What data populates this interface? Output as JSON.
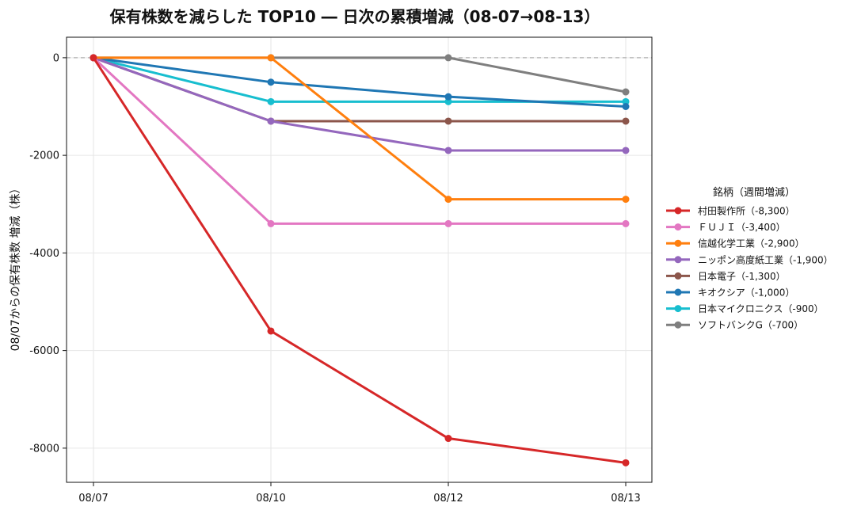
{
  "chart_data": {
    "type": "line",
    "title": "保有株数を減らした TOP10 ― 日次の累積増減（08-07→08-13）",
    "xlabel": "",
    "ylabel": "08/07からの保有株数 増減（株）",
    "x": [
      "08/07",
      "08/10",
      "08/12",
      "08/13"
    ],
    "yticks": [
      0,
      -2000,
      -4000,
      -6000,
      -8000
    ],
    "yticklabels": [
      "0",
      "-2000",
      "-4000",
      "-6000",
      "-8000"
    ],
    "ylim": [
      -8700,
      420
    ],
    "grid": true,
    "zero_line": true,
    "legend": {
      "title": "銘柄（週間増減）",
      "placement": "outside-right"
    },
    "series": [
      {
        "name": "村田製作所（-8,300）",
        "color": "#d62728",
        "values": [
          0,
          -5600,
          -7800,
          -8300
        ]
      },
      {
        "name": "ＦＵＪＩ（-3,400）",
        "color": "#e377c2",
        "values": [
          0,
          -3400,
          -3400,
          -3400
        ]
      },
      {
        "name": "信越化学工業（-2,900）",
        "color": "#ff7f0e",
        "values": [
          0,
          0,
          -2900,
          -2900
        ]
      },
      {
        "name": "ニッポン高度紙工業（-1,900）",
        "color": "#9467bd",
        "values": [
          0,
          -1300,
          -1900,
          -1900
        ]
      },
      {
        "name": "日本電子（-1,300）",
        "color": "#8c564b",
        "values": [
          0,
          -1300,
          -1300,
          -1300
        ]
      },
      {
        "name": "キオクシア（-1,000）",
        "color": "#1f77b4",
        "values": [
          0,
          -500,
          -800,
          -1000
        ]
      },
      {
        "name": "日本マイクロニクス（-900）",
        "color": "#17becf",
        "values": [
          0,
          -900,
          -900,
          -900
        ]
      },
      {
        "name": "ソフトバンクG（-700）",
        "color": "#7f7f7f",
        "values": [
          0,
          0,
          0,
          -700
        ]
      }
    ]
  }
}
